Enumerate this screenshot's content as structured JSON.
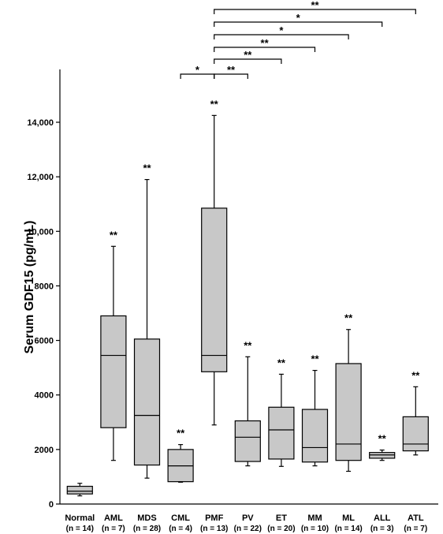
{
  "chart_data": {
    "type": "box",
    "ylabel": "Serum GDF15 (pg/mL)",
    "ylim": [
      0,
      15500
    ],
    "yticks": [
      0,
      2000,
      4000,
      6000,
      8000,
      10000,
      12000,
      14000
    ],
    "ytick_labels": [
      "0",
      "2000",
      "4000",
      "6000",
      "8000",
      "10,000",
      "12,000",
      "14,000"
    ],
    "groups": [
      {
        "label": "Normal",
        "n_label": "(n = 14)",
        "min": 300,
        "q1": 370,
        "median": 470,
        "q3": 650,
        "max": 760,
        "sig": ""
      },
      {
        "label": "AML",
        "n_label": "(n = 7)",
        "min": 1600,
        "q1": 2800,
        "median": 5450,
        "q3": 6900,
        "max": 9450,
        "sig": "**"
      },
      {
        "label": "MDS",
        "n_label": "(n = 28)",
        "min": 950,
        "q1": 1430,
        "median": 3250,
        "q3": 6050,
        "max": 11900,
        "sig": "**"
      },
      {
        "label": "CML",
        "n_label": "(n = 4)",
        "min": 800,
        "q1": 820,
        "median": 1400,
        "q3": 2000,
        "max": 2180,
        "sig": "**"
      },
      {
        "label": "PMF",
        "n_label": "(n = 13)",
        "min": 2900,
        "q1": 4850,
        "median": 5450,
        "q3": 10850,
        "max": 14250,
        "sig": "**"
      },
      {
        "label": "PV",
        "n_label": "(n = 22)",
        "min": 1400,
        "q1": 1560,
        "median": 2450,
        "q3": 3050,
        "max": 5400,
        "sig": "**"
      },
      {
        "label": "ET",
        "n_label": "(n = 20)",
        "min": 1380,
        "q1": 1650,
        "median": 2720,
        "q3": 3550,
        "max": 4760,
        "sig": "**"
      },
      {
        "label": "MM",
        "n_label": "(n = 10)",
        "min": 1400,
        "q1": 1540,
        "median": 2070,
        "q3": 3470,
        "max": 4900,
        "sig": "**"
      },
      {
        "label": "ML",
        "n_label": "(n = 14)",
        "min": 1200,
        "q1": 1600,
        "median": 2200,
        "q3": 5150,
        "max": 6400,
        "sig": "**"
      },
      {
        "label": "ALL",
        "n_label": "(n = 3)",
        "min": 1600,
        "q1": 1680,
        "median": 1800,
        "q3": 1890,
        "max": 1980,
        "sig": "**"
      },
      {
        "label": "ATL",
        "n_label": "(n = 7)",
        "min": 1800,
        "q1": 1950,
        "median": 2200,
        "q3": 3200,
        "max": 4300,
        "sig": "**"
      }
    ],
    "comparisons": [
      {
        "from": 3,
        "to": 4,
        "sig": "*"
      },
      {
        "from": 4,
        "to": 5,
        "sig": "**"
      },
      {
        "from": 4,
        "to": 6,
        "sig": "**"
      },
      {
        "from": 4,
        "to": 7,
        "sig": "**"
      },
      {
        "from": 4,
        "to": 8,
        "sig": "*"
      },
      {
        "from": 4,
        "to": 9,
        "sig": "*"
      },
      {
        "from": 4,
        "to": 10,
        "sig": "**"
      }
    ]
  }
}
